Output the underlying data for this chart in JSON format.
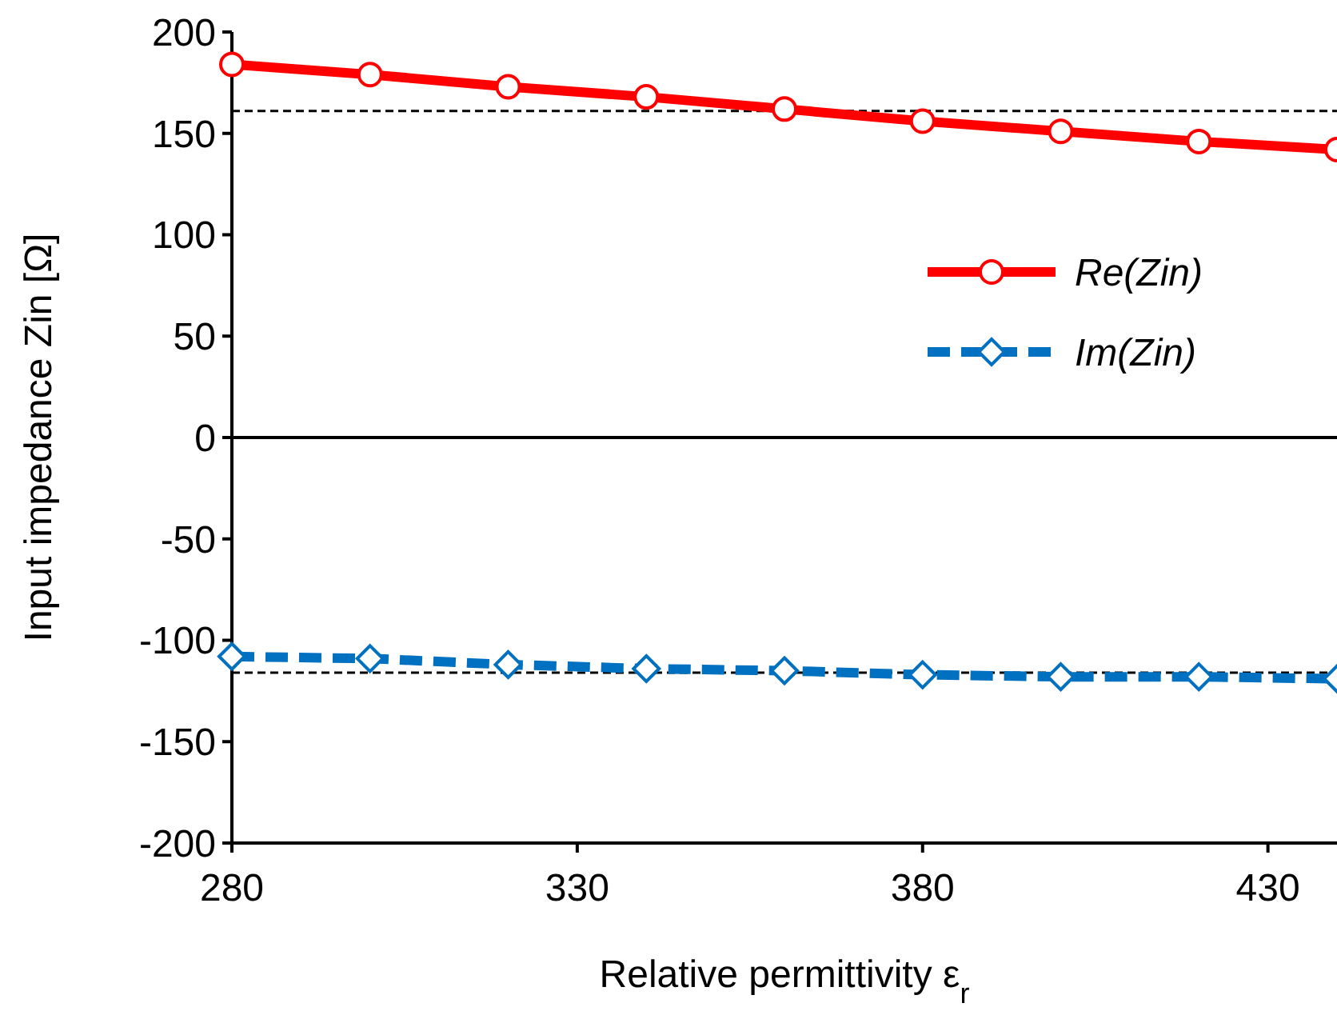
{
  "chart_data": {
    "type": "line",
    "xlabel": "Relative permittivity ε$_{r}$",
    "ylabel": "Input impedance Zin [Ω]",
    "x": [
      280,
      300,
      320,
      340,
      360,
      380,
      400,
      420,
      440
    ],
    "series": [
      {
        "name": "Re(Zin)",
        "color": "#ff0000",
        "marker": "circle",
        "line_style": "solid",
        "values": [
          184,
          179,
          173,
          168,
          162,
          156,
          151,
          146,
          142
        ]
      },
      {
        "name": "Im(Zin)",
        "color": "#0070c0",
        "marker": "diamond",
        "line_style": "dashed",
        "values": [
          -108,
          -109,
          -112,
          -114,
          -115,
          -117,
          -118,
          -118,
          -119
        ]
      }
    ],
    "xlim": [
      280,
      440
    ],
    "xticks": [
      280,
      330,
      380,
      430
    ],
    "ylim": [
      -200,
      200
    ],
    "yticks": [
      -200,
      -150,
      -100,
      -50,
      0,
      50,
      100,
      150,
      200
    ],
    "ref_lines": [
      {
        "axis": "y",
        "value": 0,
        "color": "#000000",
        "line_style": "solid"
      },
      {
        "axis": "y",
        "value": 161,
        "color": "#000000",
        "line_style": "dashed"
      },
      {
        "axis": "y",
        "value": -116,
        "color": "#000000",
        "line_style": "dashed"
      }
    ],
    "grid": false,
    "legend": "right"
  }
}
